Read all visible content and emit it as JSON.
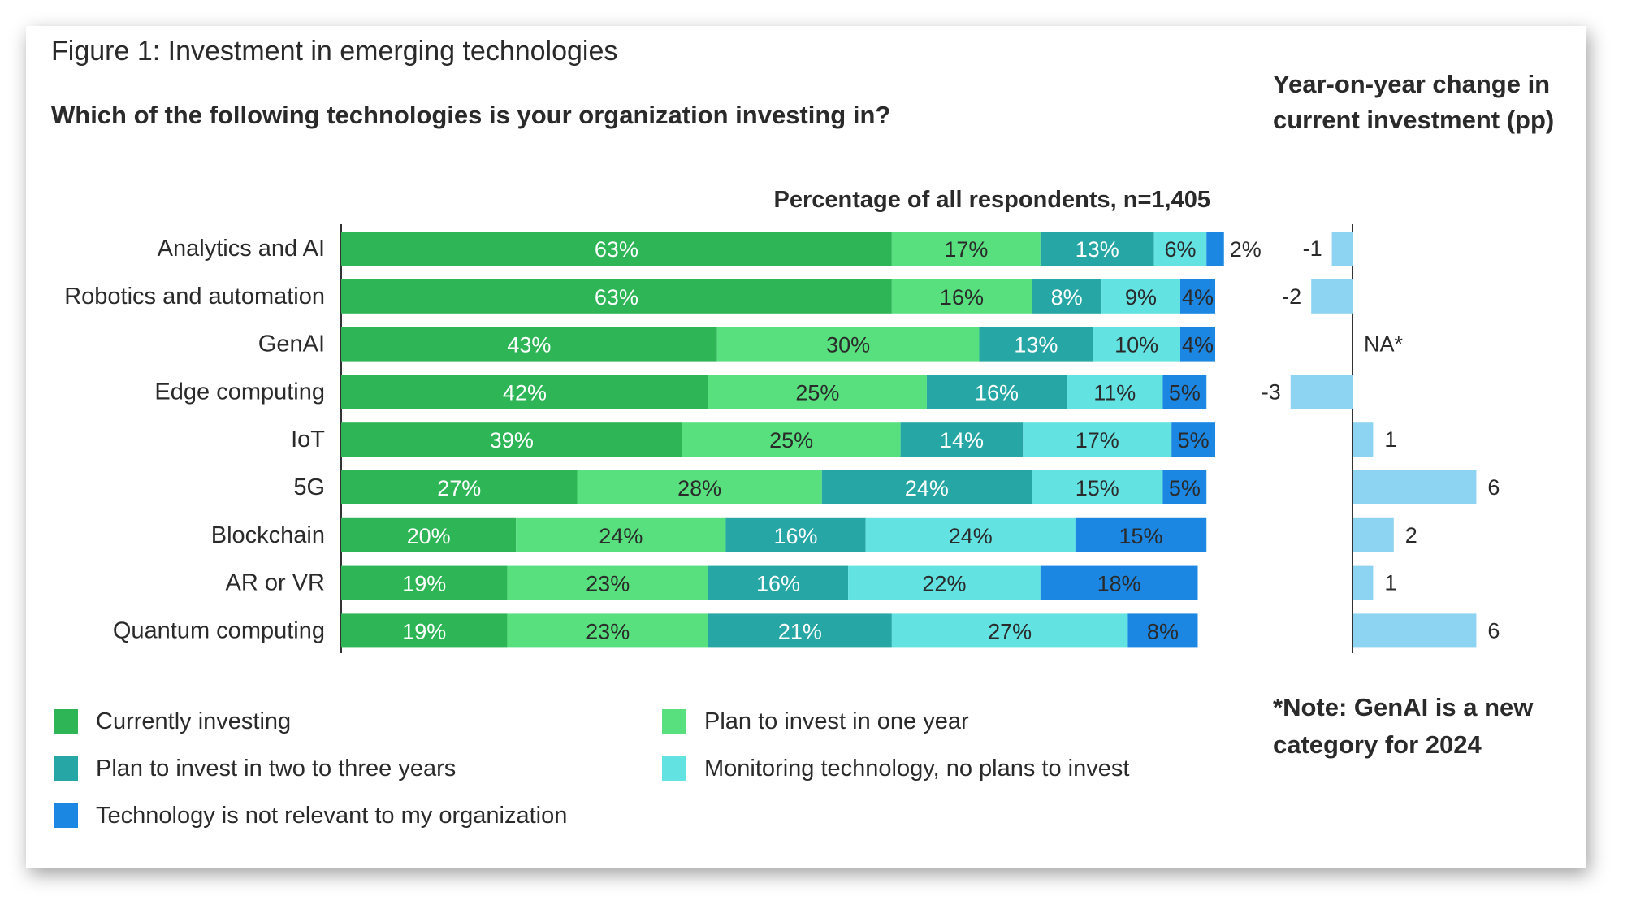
{
  "figure_title": "Figure 1: Investment in emerging technologies",
  "question": "Which of the following technologies is your organization investing in?",
  "yoy_title_line1": "Year-on-year change in",
  "yoy_title_line2": "current investment (pp)",
  "note_line1": "*Note: GenAI is a new",
  "note_line2": "category for 2024",
  "chart_data": [
    {
      "type": "bar",
      "orientation": "horizontal",
      "stacked": true,
      "subtitle": "Percentage of all respondents, n=1,405",
      "categories": [
        "Analytics and AI",
        "Robotics and automation",
        "GenAI",
        "Edge computing",
        "IoT",
        "5G",
        "Blockchain",
        "AR or VR",
        "Quantum computing"
      ],
      "series": [
        {
          "name": "Currently investing",
          "color": "#2db556",
          "label_color": "#ffffff",
          "values": [
            63,
            63,
            43,
            42,
            39,
            27,
            20,
            19,
            19
          ]
        },
        {
          "name": "Plan to invest in one year",
          "color": "#58e07f",
          "label_color": "#2a2a2a",
          "values": [
            17,
            16,
            30,
            25,
            25,
            28,
            24,
            23,
            23
          ]
        },
        {
          "name": "Plan to invest in two to three years",
          "color": "#26a7a6",
          "label_color": "#ffffff",
          "values": [
            13,
            8,
            13,
            16,
            14,
            24,
            16,
            16,
            21
          ]
        },
        {
          "name": "Monitoring technology, no plans to invest",
          "color": "#62e3e2",
          "label_color": "#2a2a2a",
          "values": [
            6,
            9,
            10,
            11,
            17,
            15,
            24,
            22,
            27
          ]
        },
        {
          "name": "Technology is not relevant to my organization",
          "color": "#1b87e2",
          "label_color": "#2a2a2a",
          "values": [
            2,
            4,
            4,
            5,
            5,
            5,
            15,
            18,
            8
          ]
        }
      ],
      "legend_placement": "bottom",
      "grid": false
    },
    {
      "type": "bar",
      "orientation": "horizontal",
      "title": "Year-on-year change in current investment (pp)",
      "categories": [
        "Analytics and AI",
        "Robotics and automation",
        "GenAI",
        "Edge computing",
        "IoT",
        "5G",
        "Blockchain",
        "AR or VR",
        "Quantum computing"
      ],
      "values": [
        -1,
        -2,
        null,
        -3,
        1,
        6,
        2,
        1,
        6
      ],
      "labels": [
        "-1",
        "-2",
        "NA*",
        "-3",
        "1",
        "6",
        "2",
        "1",
        "6"
      ],
      "color": "#8dd3f2",
      "grid": false
    }
  ]
}
